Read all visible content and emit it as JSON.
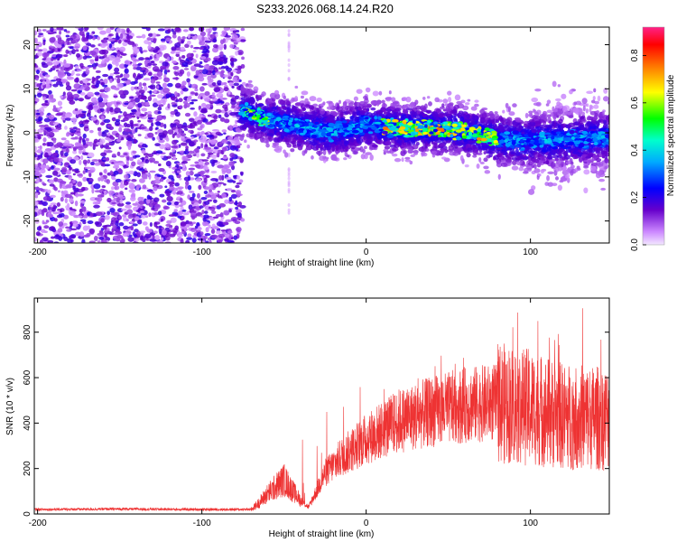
{
  "title": "S233.2026.068.14.24.R20",
  "chart_data": [
    {
      "type": "heatmap",
      "xlabel": "Height of straight line (km)",
      "ylabel": "Frequency (Hz)",
      "xlim": [
        -202,
        148
      ],
      "ylim": [
        -25,
        24
      ],
      "xticks": [
        -200,
        -100,
        0,
        100
      ],
      "yticks": [
        -20,
        -10,
        0,
        10,
        20
      ],
      "colorbar": {
        "label": "Normalized spectral amplitude",
        "range": [
          0,
          0.92
        ],
        "ticks": [
          "0.0",
          "0.2",
          "0.4",
          "0.6",
          "0.8"
        ],
        "tick_values": [
          0,
          0.2,
          0.4,
          0.6,
          0.8
        ]
      },
      "ridge": {
        "x": [
          -75,
          -60,
          -40,
          -20,
          0,
          20,
          40,
          60,
          80,
          100,
          120,
          148
        ],
        "freq": [
          5,
          3,
          1.5,
          0,
          2,
          1,
          1,
          0.5,
          -1.5,
          -2,
          -1.5,
          -1
        ]
      },
      "noise_region_x": [
        -202,
        -75
      ]
    },
    {
      "type": "line",
      "xlabel": "Height of straight line (km)",
      "ylabel": "SNR (10 * v/v)",
      "xlim": [
        -202,
        148
      ],
      "ylim": [
        0,
        950
      ],
      "xticks": [
        -200,
        -100,
        0,
        100
      ],
      "yticks": [
        0,
        200,
        400,
        600,
        800
      ],
      "series": [
        {
          "color": "#ee3333",
          "x": [
            -202,
            -150,
            -100,
            -70,
            -65,
            -60,
            -50,
            -40,
            -35,
            -25,
            -15,
            0,
            20,
            40,
            60,
            80,
            100,
            120,
            148
          ],
          "values": [
            20,
            22,
            20,
            20,
            50,
            90,
            150,
            60,
            30,
            180,
            250,
            330,
            410,
            450,
            480,
            490,
            470,
            430,
            420
          ]
        }
      ]
    }
  ]
}
